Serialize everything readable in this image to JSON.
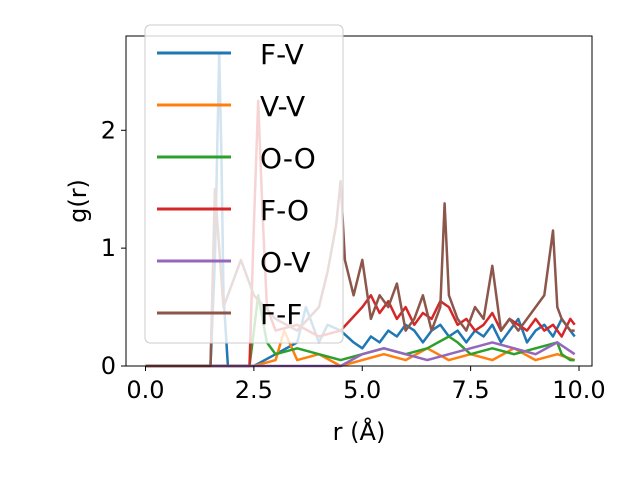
{
  "chart_data": {
    "type": "line",
    "xlabel": "r (Å)",
    "ylabel": "g(r)",
    "xlim": [
      -0.45,
      10.3
    ],
    "ylim": [
      0,
      2.8
    ],
    "xticks": [
      "0.0",
      "2.5",
      "5.0",
      "7.5",
      "10.0"
    ],
    "yticks": [
      "0",
      "1",
      "2"
    ],
    "legend_position": "top-left",
    "grid": false,
    "series": [
      {
        "name": "F-V",
        "color": "#1f77b4",
        "x": [
          0.0,
          1.5,
          1.6,
          1.7,
          1.75,
          1.8,
          1.9,
          2.0,
          2.5,
          3.0,
          3.5,
          3.7,
          3.9,
          4.0,
          4.2,
          4.5,
          4.8,
          5.0,
          5.2,
          5.4,
          5.6,
          5.8,
          6.0,
          6.2,
          6.4,
          6.6,
          6.8,
          7.0,
          7.2,
          7.4,
          7.6,
          7.8,
          8.0,
          8.2,
          8.4,
          8.6,
          8.8,
          9.0,
          9.2,
          9.4,
          9.6,
          9.8,
          9.9
        ],
        "y": [
          0.0,
          0.0,
          0.9,
          2.65,
          1.8,
          0.6,
          0.0,
          0.0,
          0.0,
          0.1,
          0.2,
          0.5,
          0.3,
          0.2,
          0.35,
          0.3,
          0.2,
          0.15,
          0.25,
          0.2,
          0.3,
          0.25,
          0.35,
          0.3,
          0.2,
          0.3,
          0.35,
          0.25,
          0.3,
          0.2,
          0.3,
          0.25,
          0.35,
          0.2,
          0.3,
          0.4,
          0.2,
          0.3,
          0.35,
          0.25,
          0.4,
          0.3,
          0.25
        ]
      },
      {
        "name": "V-V",
        "color": "#ff7f0e",
        "x": [
          0.0,
          2.5,
          3.0,
          3.2,
          3.5,
          4.0,
          4.5,
          5.0,
          5.5,
          6.0,
          6.5,
          7.0,
          7.5,
          8.0,
          8.5,
          9.0,
          9.5,
          9.9
        ],
        "y": [
          0.0,
          0.0,
          0.05,
          0.3,
          0.05,
          0.1,
          0.0,
          0.05,
          0.1,
          0.05,
          0.15,
          0.05,
          0.1,
          0.05,
          0.15,
          0.05,
          0.1,
          0.05
        ]
      },
      {
        "name": "O-O",
        "color": "#2ca02c",
        "x": [
          0.0,
          2.4,
          2.5,
          2.6,
          2.7,
          2.8,
          3.0,
          3.5,
          4.0,
          4.5,
          5.0,
          5.5,
          6.0,
          6.5,
          7.0,
          7.2,
          7.5,
          8.0,
          8.5,
          9.0,
          9.5,
          9.6,
          9.8,
          9.9
        ],
        "y": [
          0.0,
          0.0,
          0.3,
          0.6,
          0.4,
          0.2,
          0.1,
          0.15,
          0.1,
          0.05,
          0.1,
          0.15,
          0.1,
          0.15,
          0.25,
          0.2,
          0.1,
          0.15,
          0.1,
          0.15,
          0.2,
          0.1,
          0.05,
          0.05
        ]
      },
      {
        "name": "F-O",
        "color": "#d62728",
        "x": [
          0.0,
          2.4,
          2.5,
          2.6,
          2.7,
          2.8,
          3.0,
          3.5,
          4.0,
          4.5,
          5.0,
          5.2,
          5.4,
          5.6,
          5.8,
          6.0,
          6.2,
          6.4,
          6.6,
          6.8,
          7.0,
          7.2,
          7.4,
          7.6,
          7.8,
          8.0,
          8.2,
          8.4,
          8.6,
          8.8,
          9.0,
          9.2,
          9.4,
          9.6,
          9.8,
          9.9
        ],
        "y": [
          0.0,
          0.0,
          1.2,
          2.25,
          1.3,
          0.5,
          0.3,
          0.35,
          0.25,
          0.3,
          0.5,
          0.6,
          0.45,
          0.55,
          0.4,
          0.5,
          0.35,
          0.45,
          0.4,
          0.55,
          0.5,
          0.35,
          0.4,
          0.3,
          0.35,
          0.45,
          0.3,
          0.4,
          0.35,
          0.3,
          0.4,
          0.3,
          0.35,
          0.25,
          0.4,
          0.35
        ]
      },
      {
        "name": "O-V",
        "color": "#9467bd",
        "x": [
          0.0,
          4.5,
          5.0,
          5.5,
          6.0,
          6.5,
          7.0,
          7.5,
          8.0,
          8.5,
          9.0,
          9.5,
          9.7,
          9.9
        ],
        "y": [
          0.0,
          0.0,
          0.1,
          0.15,
          0.1,
          0.05,
          0.1,
          0.15,
          0.2,
          0.15,
          0.1,
          0.2,
          0.15,
          0.1
        ]
      },
      {
        "name": "F-F",
        "color": "#8c564b",
        "x": [
          0.0,
          1.5,
          1.6,
          1.7,
          1.8,
          2.0,
          2.2,
          2.5,
          3.0,
          3.5,
          4.0,
          4.2,
          4.4,
          4.5,
          4.6,
          4.8,
          5.0,
          5.2,
          5.4,
          5.6,
          5.8,
          6.0,
          6.2,
          6.4,
          6.6,
          6.8,
          6.9,
          7.0,
          7.2,
          7.4,
          7.6,
          7.8,
          8.0,
          8.2,
          8.4,
          8.6,
          8.8,
          9.0,
          9.2,
          9.4,
          9.5,
          9.6,
          9.8,
          9.9
        ],
        "y": [
          0.0,
          0.0,
          1.5,
          1.0,
          0.5,
          0.7,
          0.9,
          0.6,
          0.4,
          0.3,
          0.5,
          0.8,
          1.2,
          1.57,
          0.9,
          0.6,
          0.9,
          0.4,
          0.6,
          0.5,
          0.7,
          0.3,
          0.4,
          0.6,
          0.3,
          0.5,
          1.38,
          0.6,
          0.4,
          0.3,
          0.5,
          0.4,
          0.85,
          0.3,
          0.4,
          0.3,
          0.4,
          0.5,
          0.6,
          1.15,
          0.5,
          0.4,
          0.3,
          0.3
        ]
      }
    ]
  }
}
